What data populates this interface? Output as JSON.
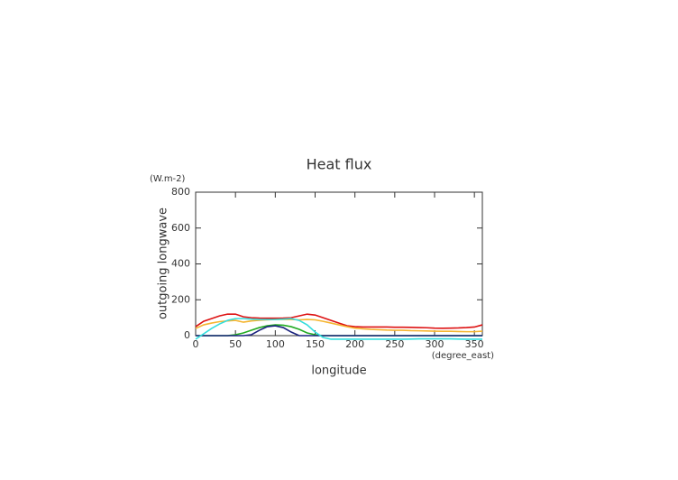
{
  "chart_data": {
    "type": "line",
    "title": "Heat flux",
    "y_label": "outgoing longwave",
    "y_units": "(W.m-2)",
    "x_label": "longitude",
    "x_units": "(degree_east)",
    "x": [
      0,
      10,
      20,
      30,
      40,
      50,
      60,
      70,
      80,
      90,
      100,
      110,
      120,
      130,
      140,
      150,
      160,
      170,
      180,
      190,
      200,
      210,
      220,
      230,
      240,
      250,
      260,
      270,
      280,
      290,
      300,
      310,
      320,
      330,
      340,
      350,
      360
    ],
    "series": [
      {
        "color": "#dd1111",
        "values": [
          50,
          80,
          95,
          110,
          120,
          120,
          105,
          100,
          98,
          97,
          97,
          98,
          100,
          110,
          120,
          115,
          100,
          85,
          70,
          55,
          50,
          48,
          48,
          48,
          48,
          47,
          47,
          46,
          45,
          44,
          42,
          41,
          42,
          43,
          45,
          48,
          60
        ]
      },
      {
        "color": "#f5b530",
        "values": [
          40,
          60,
          70,
          78,
          82,
          85,
          75,
          82,
          86,
          88,
          90,
          90,
          90,
          88,
          90,
          88,
          80,
          70,
          60,
          50,
          42,
          38,
          35,
          33,
          31,
          30,
          30,
          28,
          27,
          26,
          25,
          24,
          24,
          23,
          22,
          22,
          25
        ]
      },
      {
        "color": "#22aa22",
        "values": [
          0,
          0,
          0,
          0,
          0,
          5,
          15,
          30,
          45,
          55,
          60,
          58,
          50,
          35,
          15,
          5,
          0,
          0,
          0,
          0,
          0,
          0,
          0,
          0,
          0,
          0,
          0,
          0,
          0,
          0,
          0,
          0,
          0,
          0,
          0,
          0,
          0
        ]
      },
      {
        "color": "#1a237e",
        "values": [
          0,
          0,
          0,
          0,
          0,
          0,
          0,
          5,
          30,
          50,
          55,
          45,
          20,
          0,
          0,
          0,
          0,
          0,
          0,
          0,
          0,
          0,
          0,
          0,
          0,
          0,
          0,
          0,
          0,
          0,
          0,
          0,
          0,
          0,
          0,
          0,
          0
        ]
      },
      {
        "color": "#33dddd",
        "values": [
          -20,
          10,
          40,
          65,
          85,
          95,
          95,
          92,
          90,
          90,
          90,
          92,
          95,
          85,
          60,
          20,
          -10,
          -20,
          -20,
          -20,
          -20,
          -20,
          -20,
          -20,
          -20,
          -20,
          -20,
          -19,
          -18,
          -18,
          -18,
          -18,
          -18,
          -19,
          -20,
          -20,
          -20
        ]
      }
    ],
    "xlim": [
      0,
      360
    ],
    "xticks": [
      0,
      50,
      100,
      150,
      200,
      250,
      300,
      350
    ],
    "ylim": [
      0,
      800
    ],
    "yticks": [
      0,
      200,
      400,
      600,
      800
    ]
  }
}
